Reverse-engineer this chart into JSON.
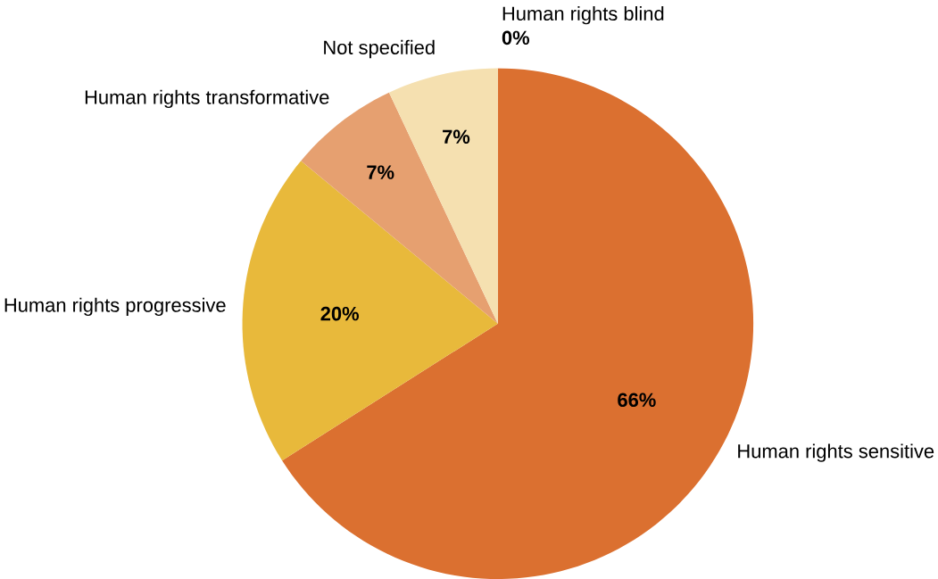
{
  "chart_data": {
    "type": "pie",
    "categories": [
      "Human rights sensitive",
      "Human rights progressive",
      "Human rights transformative",
      "Not specified",
      "Human rights blind"
    ],
    "values": [
      66,
      20,
      7,
      7,
      0
    ],
    "value_labels": [
      "66%",
      "20%",
      "7%",
      "7%",
      "0%"
    ],
    "colors": [
      "#db7030",
      "#e8b93b",
      "#e6a070",
      "#f5e0b0",
      "#f0d9a0"
    ]
  }
}
